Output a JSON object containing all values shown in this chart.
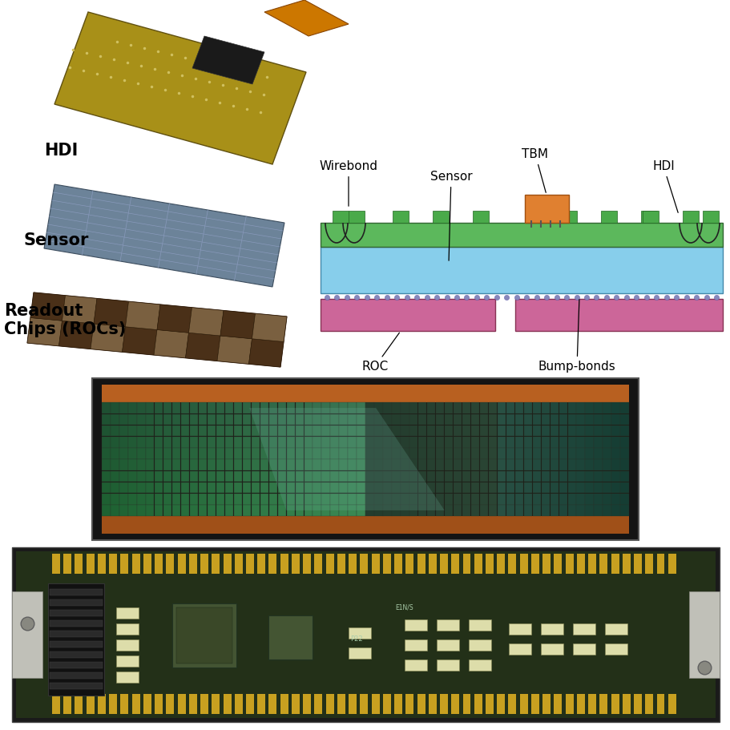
{
  "background_color": "#ffffff",
  "fig_width": 9.12,
  "fig_height": 9.11,
  "diagram_labels": {
    "wirebond": "Wirebond",
    "sensor_label": "Sensor",
    "tbm": "TBM",
    "hdi_label": "HDI",
    "roc": "ROC",
    "bump_bonds": "Bump-bonds"
  },
  "left_labels": {
    "hdi": "HDI",
    "sensor": "Sensor",
    "readout": "Readout\nChips (ROCs)"
  },
  "colors": {
    "green_layer": "#5cb85c",
    "blue_layer": "#87CEEB",
    "pink_layer": "#cc6699",
    "orange_tbm": "#e08030",
    "bump_dot": "#8080bb",
    "hdi_board": "#b5a020",
    "sensor_blue": "#607888",
    "roc_brown": "#7a6040"
  }
}
